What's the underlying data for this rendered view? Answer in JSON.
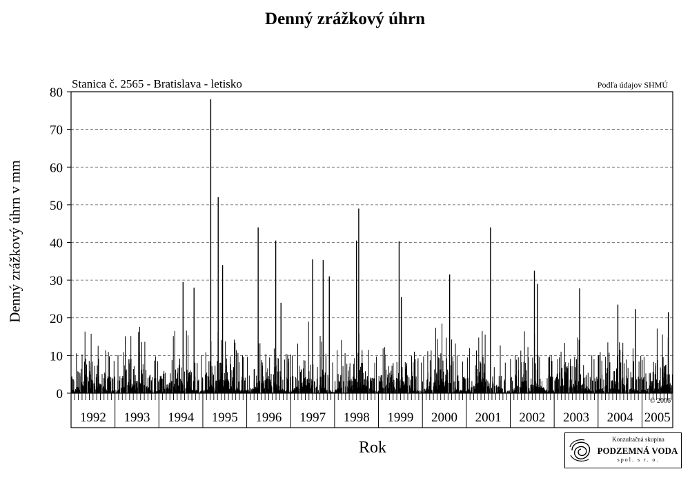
{
  "chart_data": {
    "type": "bar",
    "title": "Denný zrážkový úhrn",
    "subtitle": "Stanica č. 2565 - Bratislava - letisko",
    "source_note": "Podľa údajov SHMÚ",
    "copyright": "© 2006",
    "xlabel": "Rok",
    "ylabel": "Denný zrážkový úhrn v mm",
    "ylim": [
      0,
      80
    ],
    "yticks": [
      0,
      10,
      20,
      30,
      40,
      50,
      60,
      70,
      80
    ],
    "xlim": [
      1992.0,
      2005.7
    ],
    "year_labels": [
      "1992",
      "1993",
      "1994",
      "1995",
      "1996",
      "1997",
      "1998",
      "1999",
      "2000",
      "2001",
      "2002",
      "2003",
      "2004",
      "2005"
    ],
    "grid": "horizontal dashed",
    "bar_color": "#000000",
    "notable_peaks": [
      {
        "x": 1995.18,
        "y": 78
      },
      {
        "x": 1995.35,
        "y": 52
      },
      {
        "x": 1995.45,
        "y": 34
      },
      {
        "x": 1996.26,
        "y": 44
      },
      {
        "x": 1996.66,
        "y": 40.5
      },
      {
        "x": 1996.78,
        "y": 24
      },
      {
        "x": 1997.5,
        "y": 35.5
      },
      {
        "x": 1997.74,
        "y": 35.3
      },
      {
        "x": 1997.88,
        "y": 31
      },
      {
        "x": 1998.55,
        "y": 49
      },
      {
        "x": 1998.5,
        "y": 40.5
      },
      {
        "x": 1999.47,
        "y": 40.3
      },
      {
        "x": 1999.52,
        "y": 25.5
      },
      {
        "x": 2000.62,
        "y": 31.5
      },
      {
        "x": 2001.55,
        "y": 44
      },
      {
        "x": 2002.55,
        "y": 32.5
      },
      {
        "x": 2002.62,
        "y": 29
      },
      {
        "x": 2003.58,
        "y": 27.8
      },
      {
        "x": 1994.55,
        "y": 29.5
      },
      {
        "x": 1994.8,
        "y": 28
      },
      {
        "x": 2004.45,
        "y": 23.5
      },
      {
        "x": 2004.85,
        "y": 22.3
      },
      {
        "x": 2005.6,
        "y": 21.5
      }
    ]
  },
  "logo": {
    "line1": "Konzultačná skupina",
    "line2": "PODZEMNÁ VODA",
    "line3": "spol. s r. o."
  }
}
